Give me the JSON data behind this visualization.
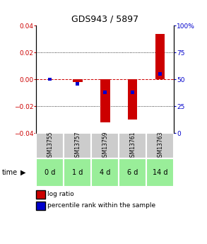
{
  "title": "GDS943 / 5897",
  "samples": [
    "GSM13755",
    "GSM13757",
    "GSM13759",
    "GSM13761",
    "GSM13763"
  ],
  "time_labels": [
    "0 d",
    "1 d",
    "4 d",
    "6 d",
    "14 d"
  ],
  "log_ratios": [
    0.0,
    -0.002,
    -0.032,
    -0.03,
    0.034
  ],
  "percentile_ranks": [
    50,
    46,
    38,
    38,
    55
  ],
  "ylim_left": [
    -0.04,
    0.04
  ],
  "ylim_right": [
    0,
    100
  ],
  "bar_color_red": "#cc0000",
  "bar_color_blue": "#0000cc",
  "yticks_left": [
    -0.04,
    -0.02,
    0,
    0.02,
    0.04
  ],
  "yticks_right": [
    0,
    25,
    50,
    75,
    100
  ],
  "ytick_labels_right": [
    "0",
    "25",
    "50",
    "75",
    "100%"
  ],
  "sample_bg_color": "#cccccc",
  "time_bg_color": "#99ee99",
  "bar_width": 0.35,
  "gridline_color": "#000000",
  "zero_line_color": "#cc0000",
  "zero_line_style": "--",
  "gridline_style": ":",
  "white": "#ffffff",
  "black": "#000000"
}
